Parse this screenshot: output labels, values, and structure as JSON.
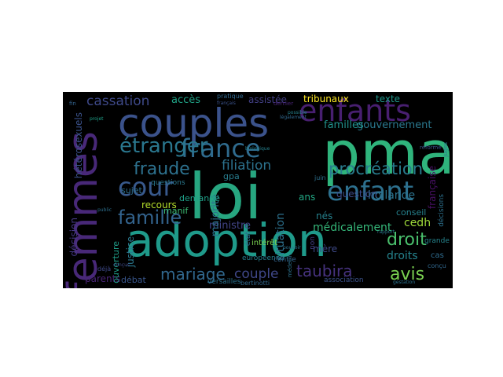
{
  "cloud": {
    "background": "#000000",
    "words": [
      {
        "text": "loi",
        "color": "#27a680",
        "vertical": false
      },
      {
        "text": "pma",
        "color": "#2fb47c",
        "vertical": false
      },
      {
        "text": "adoption",
        "color": "#1f9a8a",
        "vertical": false
      },
      {
        "text": "couples",
        "color": "#3b528b",
        "vertical": false
      },
      {
        "text": "femmes",
        "color": "#482878",
        "vertical": true
      },
      {
        "text": "enfants",
        "color": "#481f70",
        "vertical": false
      },
      {
        "text": "enfant",
        "color": "#2d708e",
        "vertical": false
      },
      {
        "text": "france",
        "color": "#2f6b8e",
        "vertical": false
      },
      {
        "text": "cour",
        "color": "#38598c",
        "vertical": false
      },
      {
        "text": "étranger",
        "color": "#2a778e",
        "vertical": false
      },
      {
        "text": "famille",
        "color": "#33638d",
        "vertical": false
      },
      {
        "text": "fraude",
        "color": "#2d718e",
        "vertical": false
      },
      {
        "text": "droit",
        "color": "#4ac16d",
        "vertical": false
      },
      {
        "text": "avis",
        "color": "#7ad151",
        "vertical": false
      },
      {
        "text": "taubira",
        "color": "#46327e",
        "vertical": false
      },
      {
        "text": "procréation",
        "color": "#287c8e",
        "vertical": false
      },
      {
        "text": "cassation",
        "color": "#3e4989",
        "vertical": false
      },
      {
        "text": "mariage",
        "color": "#31688e",
        "vertical": false
      },
      {
        "text": "filiation",
        "color": "#2c728e",
        "vertical": false
      },
      {
        "text": "couple",
        "color": "#3f4788",
        "vertical": false
      },
      {
        "text": "hollande",
        "color": "#2c738e",
        "vertical": false
      },
      {
        "text": "gouvernement",
        "color": "#2a788e",
        "vertical": false
      },
      {
        "text": "médicalement",
        "color": "#35b779",
        "vertical": false
      },
      {
        "text": "cedh",
        "color": "#9fda3a",
        "vertical": false
      },
      {
        "text": "droits",
        "color": "#25838e",
        "vertical": false
      },
      {
        "text": "familles",
        "color": "#21918c",
        "vertical": false
      },
      {
        "text": "situation",
        "color": "#2d718e",
        "vertical": true
      },
      {
        "text": "question",
        "color": "#3d4d8a",
        "vertical": false
      },
      {
        "text": "ministre",
        "color": "#414487",
        "vertical": false
      },
      {
        "text": "recours",
        "color": "#b5de2b",
        "vertical": false
      },
      {
        "text": "justice",
        "color": "#2a788e",
        "vertical": true
      },
      {
        "text": "accès",
        "color": "#20a386",
        "vertical": false
      },
      {
        "text": "assistée",
        "color": "#423f85",
        "vertical": false
      },
      {
        "text": "tribunaux",
        "color": "#fde725",
        "vertical": false
      },
      {
        "text": "texte",
        "color": "#1f988b",
        "vertical": false
      },
      {
        "text": "nés",
        "color": "#26818e",
        "vertical": false
      },
      {
        "text": "mère",
        "color": "#3e4a89",
        "vertical": false
      },
      {
        "text": "ans",
        "color": "#22a884",
        "vertical": false
      },
      {
        "text": "gpa",
        "color": "#287d8e",
        "vertical": false
      },
      {
        "text": "majorité",
        "color": "#2c738e",
        "vertical": true
      },
      {
        "text": "manif",
        "color": "#3dbc74",
        "vertical": false
      },
      {
        "text": "demande",
        "color": "#1fa088",
        "vertical": false
      },
      {
        "text": "sujet",
        "color": "#2e6e8e",
        "vertical": false
      },
      {
        "text": "parents",
        "color": "#482475",
        "vertical": false
      },
      {
        "text": "débat",
        "color": "#39568c",
        "vertical": false
      },
      {
        "text": "décision",
        "color": "#453882",
        "vertical": true
      },
      {
        "text": "hétérosexuels",
        "color": "#3b528b",
        "vertical": true
      },
      {
        "text": "ouverture",
        "color": "#1f9e89",
        "vertical": true
      },
      {
        "text": "française",
        "color": "#471063",
        "vertical": true
      },
      {
        "text": "conseil",
        "color": "#26828e",
        "vertical": false
      },
      {
        "text": "intérêt",
        "color": "#7ad151",
        "vertical": false
      },
      {
        "text": "état",
        "color": "#2e6d8e",
        "vertical": true
      },
      {
        "text": "européenne",
        "color": "#277f8e",
        "vertical": false
      },
      {
        "text": "contre",
        "color": "#33638d",
        "vertical": false
      },
      {
        "text": "association",
        "color": "#3b528b",
        "vertical": false
      },
      {
        "text": "versailles",
        "color": "#2c728e",
        "vertical": false
      },
      {
        "text": "pratique",
        "color": "#31688e",
        "vertical": false
      },
      {
        "text": "grande",
        "color": "#25858e",
        "vertical": false
      },
      {
        "text": "questions",
        "color": "#2a788e",
        "vertical": false
      },
      {
        "text": "juin",
        "color": "#2d708e",
        "vertical": false
      },
      {
        "text": "décisions",
        "color": "#2d718e",
        "vertical": true
      },
      {
        "text": "non",
        "color": "#423f85",
        "vertical": true
      },
      {
        "text": "cas",
        "color": "#2f6c8e",
        "vertical": false
      },
      {
        "text": "conçu",
        "color": "#31688e",
        "vertical": false
      },
      {
        "text": "déjà",
        "color": "#3e4989",
        "vertical": false
      },
      {
        "text": "dernier",
        "color": "#482475",
        "vertical": false
      },
      {
        "text": "bertinotti",
        "color": "#31688e",
        "vertical": false
      },
      {
        "text": "médecin",
        "color": "#2c728e",
        "vertical": true
      },
      {
        "text": "réforme",
        "color": "#3b528b",
        "vertical": false
      },
      {
        "text": "juges",
        "color": "#2a788e",
        "vertical": true
      },
      {
        "text": "gestation",
        "color": "#2c728e",
        "vertical": false
      },
      {
        "text": "français",
        "color": "#3b528b",
        "vertical": false
      },
      {
        "text": "biologique",
        "color": "#26828e",
        "vertical": false
      },
      {
        "text": "fin",
        "color": "#33638d",
        "vertical": false
      },
      {
        "text": "projet",
        "color": "#1fa088",
        "vertical": false
      },
      {
        "text": "pouvoir",
        "color": "#2c728e",
        "vertical": false
      },
      {
        "text": "légalement",
        "color": "#31688e",
        "vertical": false
      },
      {
        "text": "rapport",
        "color": "#2a788e",
        "vertical": false
      },
      {
        "text": "conçus",
        "color": "#3e4989",
        "vertical": false
      },
      {
        "text": "public",
        "color": "#2d708e",
        "vertical": false
      },
      {
        "text": "possible",
        "color": "#26828e",
        "vertical": false
      }
    ]
  }
}
